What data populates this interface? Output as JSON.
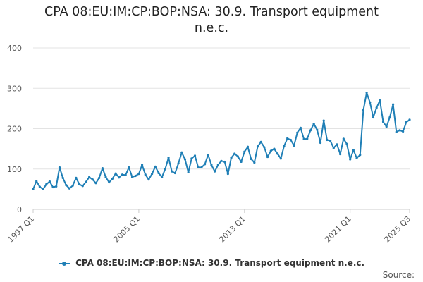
{
  "chart_data": {
    "type": "line",
    "title": "CPA 08:EU:IM:CP:BOP:NSA: 30.9. Transport equipment n.e.c.",
    "xlabel": "",
    "ylabel": "",
    "ylim": [
      0,
      400
    ],
    "yticks": [
      "0",
      "100",
      "200",
      "300",
      "400"
    ],
    "xticks": [
      "1997 Q1",
      "2005 Q1",
      "2013 Q1",
      "2021 Q1",
      "2025 Q3"
    ],
    "x_tick_indices": [
      0,
      32,
      64,
      96,
      114
    ],
    "grid": true,
    "legend_position": "bottom",
    "line_color": "#1f7fb6",
    "x": [
      "1997 Q1",
      "1997 Q2",
      "1997 Q3",
      "1997 Q4",
      "1998 Q1",
      "1998 Q2",
      "1998 Q3",
      "1998 Q4",
      "1999 Q1",
      "1999 Q2",
      "1999 Q3",
      "1999 Q4",
      "2000 Q1",
      "2000 Q2",
      "2000 Q3",
      "2000 Q4",
      "2001 Q1",
      "2001 Q2",
      "2001 Q3",
      "2001 Q4",
      "2002 Q1",
      "2002 Q2",
      "2002 Q3",
      "2002 Q4",
      "2003 Q1",
      "2003 Q2",
      "2003 Q3",
      "2003 Q4",
      "2004 Q1",
      "2004 Q2",
      "2004 Q3",
      "2004 Q4",
      "2005 Q1",
      "2005 Q2",
      "2005 Q3",
      "2005 Q4",
      "2006 Q1",
      "2006 Q2",
      "2006 Q3",
      "2006 Q4",
      "2007 Q1",
      "2007 Q2",
      "2007 Q3",
      "2007 Q4",
      "2008 Q1",
      "2008 Q2",
      "2008 Q3",
      "2008 Q4",
      "2009 Q1",
      "2009 Q2",
      "2009 Q3",
      "2009 Q4",
      "2010 Q1",
      "2010 Q2",
      "2010 Q3",
      "2010 Q4",
      "2011 Q1",
      "2011 Q2",
      "2011 Q3",
      "2011 Q4",
      "2012 Q1",
      "2012 Q2",
      "2012 Q3",
      "2012 Q4",
      "2013 Q1",
      "2013 Q2",
      "2013 Q3",
      "2013 Q4",
      "2014 Q1",
      "2014 Q2",
      "2014 Q3",
      "2014 Q4",
      "2015 Q1",
      "2015 Q2",
      "2015 Q3",
      "2015 Q4",
      "2016 Q1",
      "2016 Q2",
      "2016 Q3",
      "2016 Q4",
      "2017 Q1",
      "2017 Q2",
      "2017 Q3",
      "2017 Q4",
      "2018 Q1",
      "2018 Q2",
      "2018 Q3",
      "2018 Q4",
      "2019 Q1",
      "2019 Q2",
      "2019 Q3",
      "2019 Q4",
      "2020 Q1",
      "2020 Q2",
      "2020 Q3",
      "2020 Q4",
      "2021 Q1",
      "2021 Q2",
      "2021 Q3",
      "2021 Q4",
      "2022 Q1",
      "2022 Q2",
      "2022 Q3",
      "2022 Q4",
      "2023 Q1",
      "2023 Q2",
      "2023 Q3",
      "2023 Q4",
      "2024 Q1",
      "2024 Q2",
      "2024 Q3",
      "2024 Q4",
      "2025 Q1",
      "2025 Q2",
      "2025 Q3"
    ],
    "series": [
      {
        "name": "CPA 08:EU:IM:CP:BOP:NSA: 30.9. Transport equipment n.e.c.",
        "values": [
          50,
          70,
          56,
          50,
          62,
          69,
          55,
          57,
          104,
          78,
          60,
          52,
          59,
          78,
          62,
          58,
          68,
          80,
          74,
          65,
          78,
          102,
          80,
          67,
          76,
          89,
          79,
          86,
          85,
          104,
          80,
          83,
          88,
          110,
          86,
          74,
          88,
          106,
          90,
          80,
          100,
          128,
          94,
          90,
          114,
          141,
          124,
          92,
          126,
          133,
          104,
          104,
          112,
          135,
          110,
          94,
          110,
          120,
          118,
          88,
          128,
          138,
          131,
          118,
          143,
          155,
          125,
          116,
          156,
          167,
          154,
          130,
          145,
          150,
          138,
          126,
          157,
          176,
          172,
          158,
          190,
          202,
          174,
          175,
          196,
          212,
          197,
          165,
          220,
          172,
          170,
          152,
          161,
          137,
          175,
          162,
          124,
          147,
          127,
          135,
          246,
          289,
          265,
          228,
          252,
          270,
          217,
          205,
          228,
          260,
          192,
          196,
          193,
          216,
          222
        ]
      }
    ]
  },
  "legend": {
    "label": "CPA 08:EU:IM:CP:BOP:NSA: 30.9. Transport equipment n.e.c."
  },
  "source": {
    "label": "Source:"
  }
}
